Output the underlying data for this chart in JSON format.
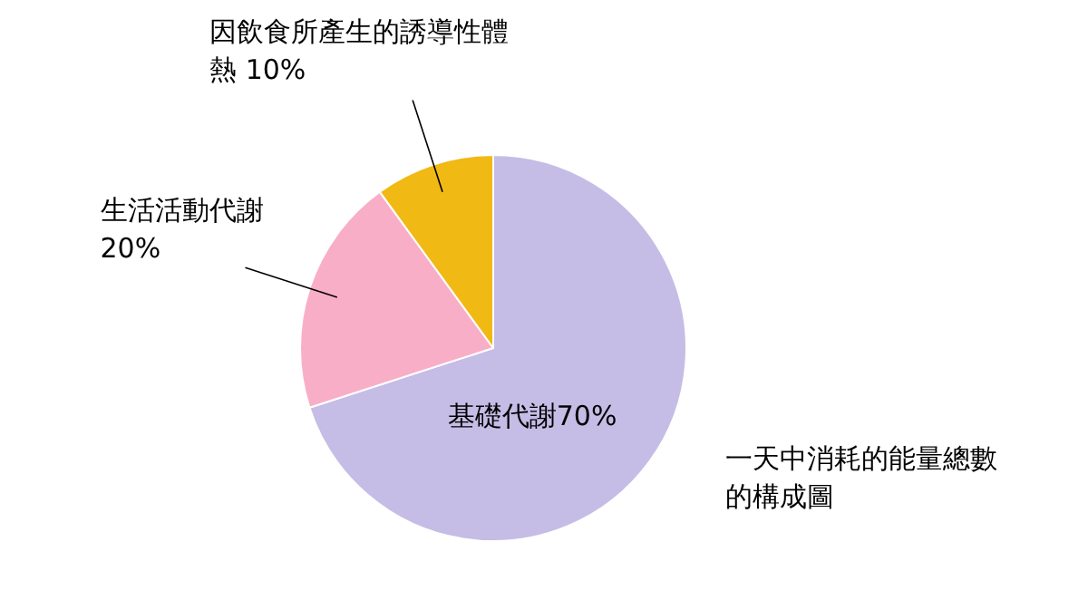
{
  "chart_data": {
    "type": "pie",
    "categories": [
      "基礎代謝",
      "生活活動代謝",
      "因飲食所產生的誘導性體熱"
    ],
    "values": [
      70,
      20,
      10
    ],
    "colors": [
      "#c5bde6",
      "#f9aec8",
      "#f0b914"
    ],
    "value_labels": [
      "70%",
      "20%",
      "10%"
    ],
    "annotations": [
      "一天中消耗的能量總數的構成圖"
    ],
    "legend": false
  }
}
